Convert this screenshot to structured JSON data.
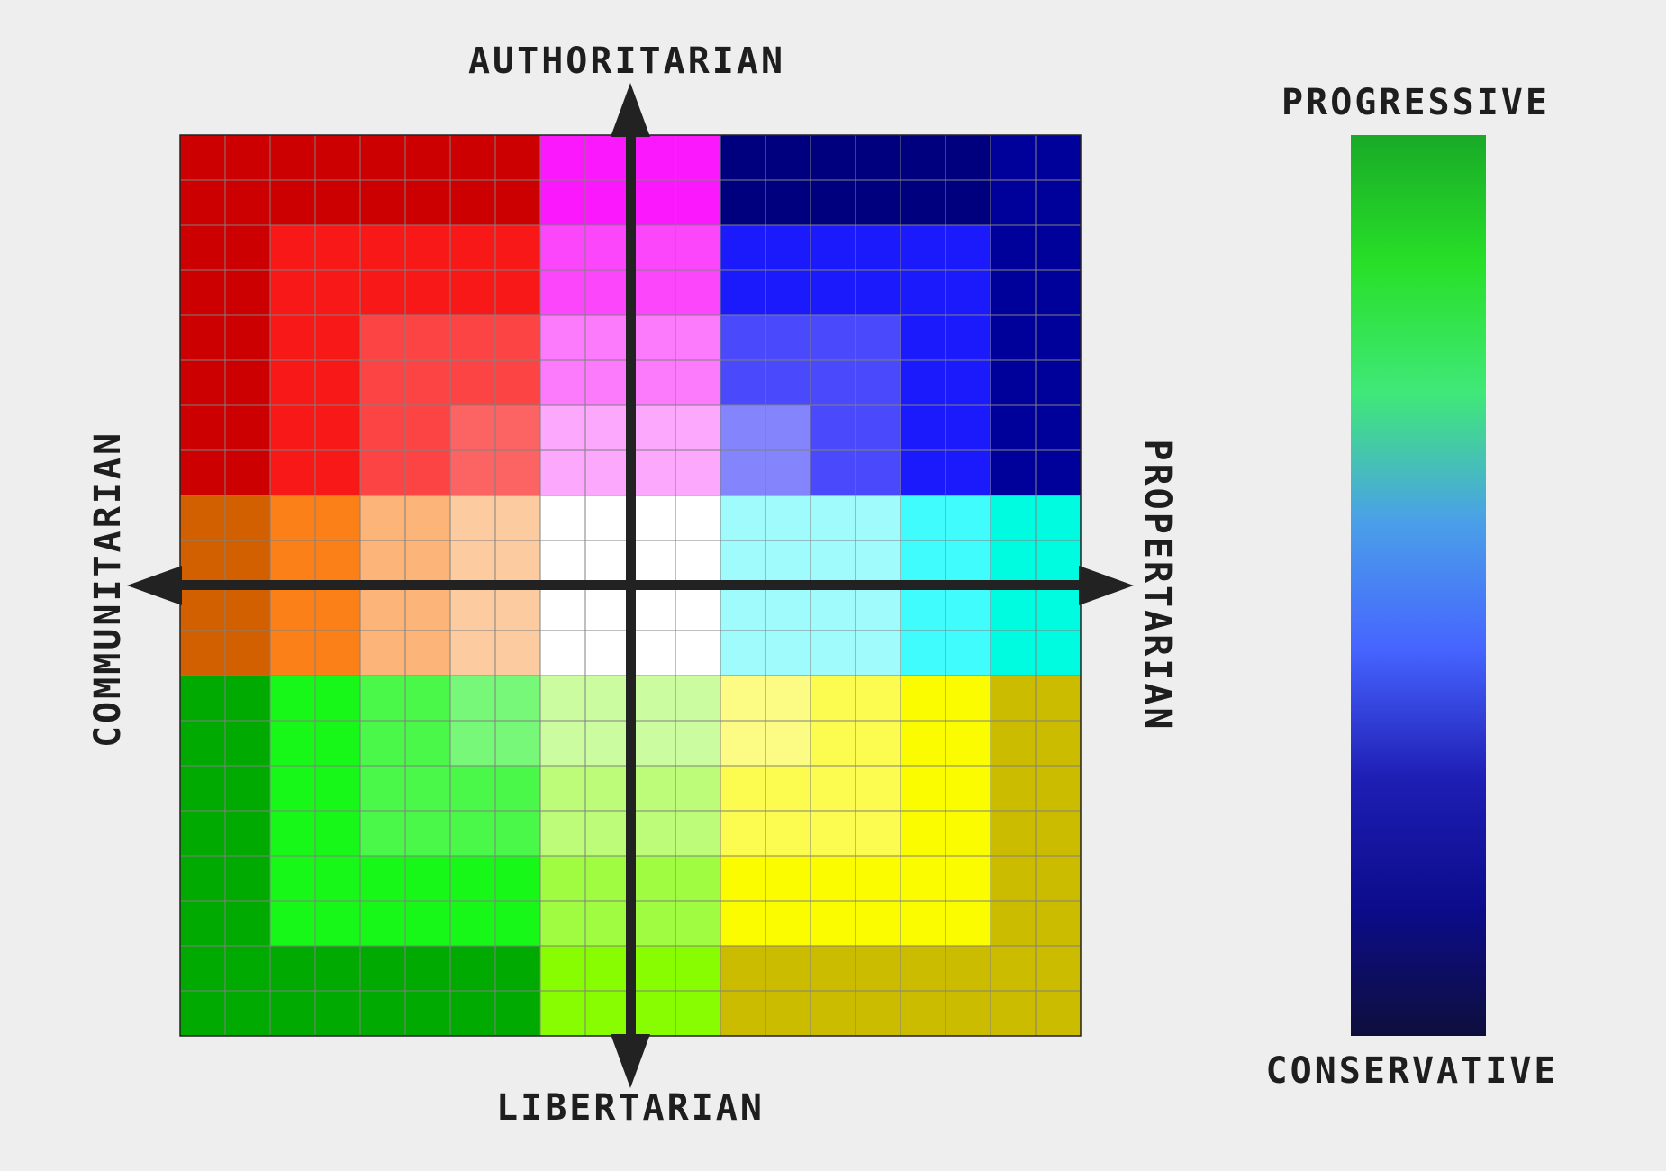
{
  "axes": {
    "top": "AUTHORITARIAN",
    "bottom": "LIBERTARIAN",
    "left": "COMMUNITARIAN",
    "right": "PROPERTARIAN"
  },
  "scale": {
    "top_label": "PROGRESSIVE",
    "bottom_label": "CONSERVATIVE",
    "gradient_stops": [
      "#19aa28",
      "#28e028",
      "#40e878",
      "#4aa0e8",
      "#4664ff",
      "#1e1eb4",
      "#0c0c8c",
      "#0e0e3c"
    ]
  },
  "grid": {
    "rows": 20,
    "cols": 20,
    "palette": {
      "R1": "#cc0000",
      "R2": "#f81818",
      "R3": "#fc4444",
      "R4": "#fc6464",
      "M1": "#fc18fc",
      "M2": "#fc46fc",
      "M3": "#fc7afc",
      "M4": "#fca8fc",
      "B1": "#00007e",
      "B2": "#00009a",
      "B3": "#1a1afc",
      "B4": "#4a4afc",
      "B5": "#8484fc",
      "O1": "#d26000",
      "O2": "#fc8018",
      "O3": "#fcb478",
      "O4": "#fccca0",
      "W": "#ffffff",
      "C1": "#a0fcfc",
      "C2": "#40fcfc",
      "C3": "#00fce0",
      "G1": "#00aa00",
      "G2": "#18f818",
      "G3": "#4af84a",
      "G4": "#78f878",
      "L1": "#88fc00",
      "L2": "#a0fc40",
      "L3": "#bcfc78",
      "L4": "#ccfca0",
      "Y1": "#ccbc00",
      "Y2": "#fcfc00",
      "Y3": "#fcfc50",
      "Y4": "#fcfc84"
    },
    "rows_data": [
      [
        "R1",
        "R1",
        "R1",
        "R1",
        "R1",
        "R1",
        "R1",
        "R1",
        "M1",
        "M1",
        "M1",
        "M1",
        "B1",
        "B1",
        "B1",
        "B1",
        "B1",
        "B1",
        "B2",
        "B2"
      ],
      [
        "R1",
        "R1",
        "R1",
        "R1",
        "R1",
        "R1",
        "R1",
        "R1",
        "M1",
        "M1",
        "M1",
        "M1",
        "B1",
        "B1",
        "B1",
        "B1",
        "B1",
        "B1",
        "B2",
        "B2"
      ],
      [
        "R1",
        "R1",
        "R2",
        "R2",
        "R2",
        "R2",
        "R2",
        "R2",
        "M2",
        "M2",
        "M2",
        "M2",
        "B3",
        "B3",
        "B3",
        "B3",
        "B3",
        "B3",
        "B2",
        "B2"
      ],
      [
        "R1",
        "R1",
        "R2",
        "R2",
        "R2",
        "R2",
        "R2",
        "R2",
        "M2",
        "M2",
        "M2",
        "M2",
        "B3",
        "B3",
        "B3",
        "B3",
        "B3",
        "B3",
        "B2",
        "B2"
      ],
      [
        "R1",
        "R1",
        "R2",
        "R2",
        "R3",
        "R3",
        "R3",
        "R3",
        "M3",
        "M3",
        "M3",
        "M3",
        "B4",
        "B4",
        "B4",
        "B4",
        "B3",
        "B3",
        "B2",
        "B2"
      ],
      [
        "R1",
        "R1",
        "R2",
        "R2",
        "R3",
        "R3",
        "R3",
        "R3",
        "M3",
        "M3",
        "M3",
        "M3",
        "B4",
        "B4",
        "B4",
        "B4",
        "B3",
        "B3",
        "B2",
        "B2"
      ],
      [
        "R1",
        "R1",
        "R2",
        "R2",
        "R3",
        "R3",
        "R4",
        "R4",
        "M4",
        "M4",
        "M4",
        "M4",
        "B5",
        "B5",
        "B4",
        "B4",
        "B3",
        "B3",
        "B2",
        "B2"
      ],
      [
        "R1",
        "R1",
        "R2",
        "R2",
        "R3",
        "R3",
        "R4",
        "R4",
        "M4",
        "M4",
        "M4",
        "M4",
        "B5",
        "B5",
        "B4",
        "B4",
        "B3",
        "B3",
        "B2",
        "B2"
      ],
      [
        "O1",
        "O1",
        "O2",
        "O2",
        "O3",
        "O3",
        "O4",
        "O4",
        "W",
        "W",
        "W",
        "W",
        "C1",
        "C1",
        "C1",
        "C1",
        "C2",
        "C2",
        "C3",
        "C3"
      ],
      [
        "O1",
        "O1",
        "O2",
        "O2",
        "O3",
        "O3",
        "O4",
        "O4",
        "W",
        "W",
        "W",
        "W",
        "C1",
        "C1",
        "C1",
        "C1",
        "C2",
        "C2",
        "C3",
        "C3"
      ],
      [
        "O1",
        "O1",
        "O2",
        "O2",
        "O3",
        "O3",
        "O4",
        "O4",
        "W",
        "W",
        "W",
        "W",
        "C1",
        "C1",
        "C1",
        "C1",
        "C2",
        "C2",
        "C3",
        "C3"
      ],
      [
        "O1",
        "O1",
        "O2",
        "O2",
        "O3",
        "O3",
        "O4",
        "O4",
        "W",
        "W",
        "W",
        "W",
        "C1",
        "C1",
        "C1",
        "C1",
        "C2",
        "C2",
        "C3",
        "C3"
      ],
      [
        "G1",
        "G1",
        "G2",
        "G2",
        "G3",
        "G3",
        "G4",
        "G4",
        "L4",
        "L4",
        "L4",
        "L4",
        "Y4",
        "Y4",
        "Y3",
        "Y3",
        "Y2",
        "Y2",
        "Y1",
        "Y1"
      ],
      [
        "G1",
        "G1",
        "G2",
        "G2",
        "G3",
        "G3",
        "G4",
        "G4",
        "L4",
        "L4",
        "L4",
        "L4",
        "Y4",
        "Y4",
        "Y3",
        "Y3",
        "Y2",
        "Y2",
        "Y1",
        "Y1"
      ],
      [
        "G1",
        "G1",
        "G2",
        "G2",
        "G3",
        "G3",
        "G3",
        "G3",
        "L3",
        "L3",
        "L3",
        "L3",
        "Y3",
        "Y3",
        "Y3",
        "Y3",
        "Y2",
        "Y2",
        "Y1",
        "Y1"
      ],
      [
        "G1",
        "G1",
        "G2",
        "G2",
        "G3",
        "G3",
        "G3",
        "G3",
        "L3",
        "L3",
        "L3",
        "L3",
        "Y3",
        "Y3",
        "Y3",
        "Y3",
        "Y2",
        "Y2",
        "Y1",
        "Y1"
      ],
      [
        "G1",
        "G1",
        "G2",
        "G2",
        "G2",
        "G2",
        "G2",
        "G2",
        "L2",
        "L2",
        "L2",
        "L2",
        "Y2",
        "Y2",
        "Y2",
        "Y2",
        "Y2",
        "Y2",
        "Y1",
        "Y1"
      ],
      [
        "G1",
        "G1",
        "G2",
        "G2",
        "G2",
        "G2",
        "G2",
        "G2",
        "L2",
        "L2",
        "L2",
        "L2",
        "Y2",
        "Y2",
        "Y2",
        "Y2",
        "Y2",
        "Y2",
        "Y1",
        "Y1"
      ],
      [
        "G1",
        "G1",
        "G1",
        "G1",
        "G1",
        "G1",
        "G1",
        "G1",
        "L1",
        "L1",
        "L1",
        "L1",
        "Y1",
        "Y1",
        "Y1",
        "Y1",
        "Y1",
        "Y1",
        "Y1",
        "Y1"
      ],
      [
        "G1",
        "G1",
        "G1",
        "G1",
        "G1",
        "G1",
        "G1",
        "G1",
        "L1",
        "L1",
        "L1",
        "L1",
        "Y1",
        "Y1",
        "Y1",
        "Y1",
        "Y1",
        "Y1",
        "Y1",
        "Y1"
      ]
    ],
    "line_color": "#808080",
    "axis_color": "#222222"
  }
}
